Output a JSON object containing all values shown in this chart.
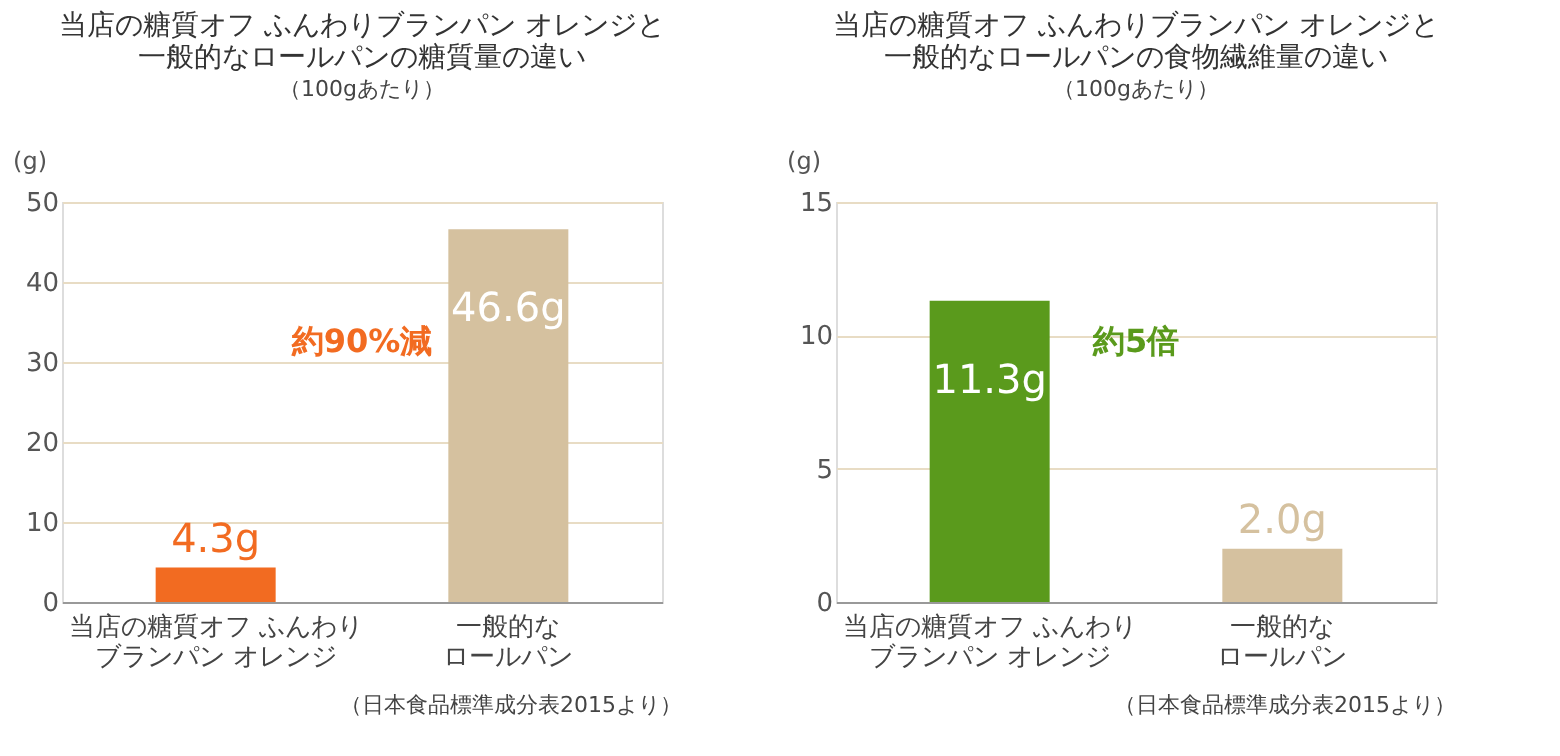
{
  "chart_data": [
    {
      "type": "bar",
      "title": "当店の糖質オフ ふんわりブランパン オレンジと一般的なロールパンの糖質量の違い",
      "subtitle": "（100gあたり）",
      "ylabel": "(g)",
      "categories": [
        "当店の糖質オフ ふんわりブランパン オレンジ",
        "一般的なロールパン"
      ],
      "values": [
        4.3,
        46.6
      ],
      "colors": [
        "#f26b21",
        "#d5c19f"
      ],
      "value_labels": [
        "4.3g",
        "46.6g"
      ],
      "ylim": [
        0,
        50
      ],
      "yticks": [
        0,
        10,
        20,
        30,
        40,
        50
      ],
      "grid": "y",
      "annotations": [
        "約90%減",
        "（日本食品標準成分表2015より）"
      ]
    },
    {
      "type": "bar",
      "title": "当店の糖質オフ ふんわりブランパン オレンジと一般的なロールパンの食物繊維量の違い",
      "subtitle": "（100gあたり）",
      "ylabel": "(g)",
      "categories": [
        "当店の糖質オフ ふんわりブランパン オレンジ",
        "一般的なロールパン"
      ],
      "values": [
        11.3,
        2.0
      ],
      "colors": [
        "#5a9a1c",
        "#d5c19f"
      ],
      "value_labels": [
        "11.3g",
        "2.0g"
      ],
      "ylim": [
        0,
        15
      ],
      "yticks": [
        0,
        5,
        10,
        15
      ],
      "grid": "y",
      "annotations": [
        "約5倍",
        "（日本食品標準成分表2015より）"
      ]
    }
  ]
}
